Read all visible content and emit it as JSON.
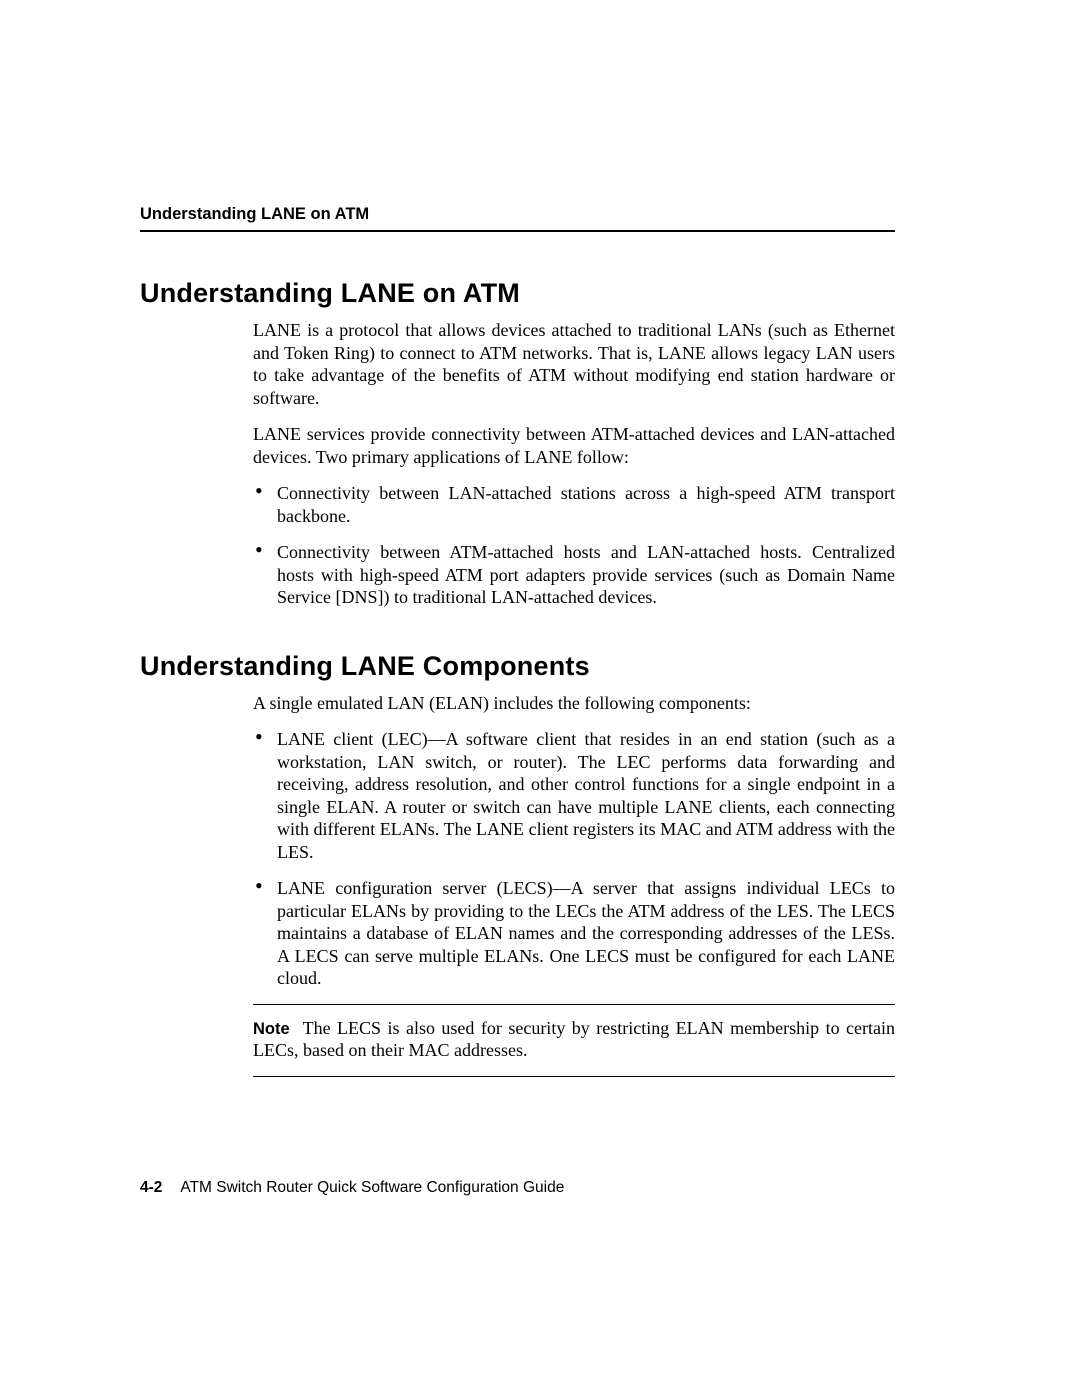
{
  "colors": {
    "text": "#000000",
    "background": "#ffffff",
    "rule": "#000000"
  },
  "typography": {
    "body_font": "Times New Roman",
    "heading_font": "Helvetica",
    "body_size_pt": 13.5,
    "heading_size_pt": 20,
    "running_header_size_pt": 12,
    "footer_size_pt": 11.5
  },
  "running_header": "Understanding LANE on ATM",
  "sections": [
    {
      "heading": "Understanding LANE on ATM",
      "paragraphs": [
        "LANE is a protocol that allows devices attached to traditional LANs (such as Ethernet and Token Ring) to connect to ATM networks. That is, LANE allows legacy LAN users to take advantage of the benefits of ATM without modifying end station hardware or software.",
        "LANE services provide connectivity between ATM-attached devices and LAN-attached devices. Two primary applications of LANE follow:"
      ],
      "bullets": [
        "Connectivity between LAN-attached stations across a high-speed ATM transport backbone.",
        "Connectivity between ATM-attached hosts and LAN-attached hosts. Centralized hosts with high-speed ATM port adapters provide services (such as Domain Name Service [DNS]) to traditional LAN-attached devices."
      ]
    },
    {
      "heading": "Understanding LANE Components",
      "paragraphs": [
        "A single emulated LAN (ELAN) includes the following components:"
      ],
      "bullets": [
        "LANE client (LEC)—A software client that resides in an end station (such as a workstation, LAN switch, or router). The LEC performs data forwarding and receiving, address resolution, and other control functions for a single endpoint in a single ELAN. A router or switch can have multiple LANE clients, each connecting with different ELANs. The LANE client registers its MAC and ATM address with the LES.",
        "LANE configuration server (LECS)—A server that assigns individual LECs to particular ELANs by providing to the LECs the ATM address of the LES. The LECS maintains a database of ELAN names and the corresponding addresses of the LESs. A LECS can serve multiple ELANs. One LECS must be configured for each LANE cloud."
      ],
      "note": {
        "label": "Note",
        "text": "The LECS is also used for security by restricting ELAN membership to certain LECs, based on their MAC addresses."
      }
    }
  ],
  "footer": {
    "page_number": "4-2",
    "book_title": "ATM Switch Router Quick Software Configuration Guide"
  }
}
